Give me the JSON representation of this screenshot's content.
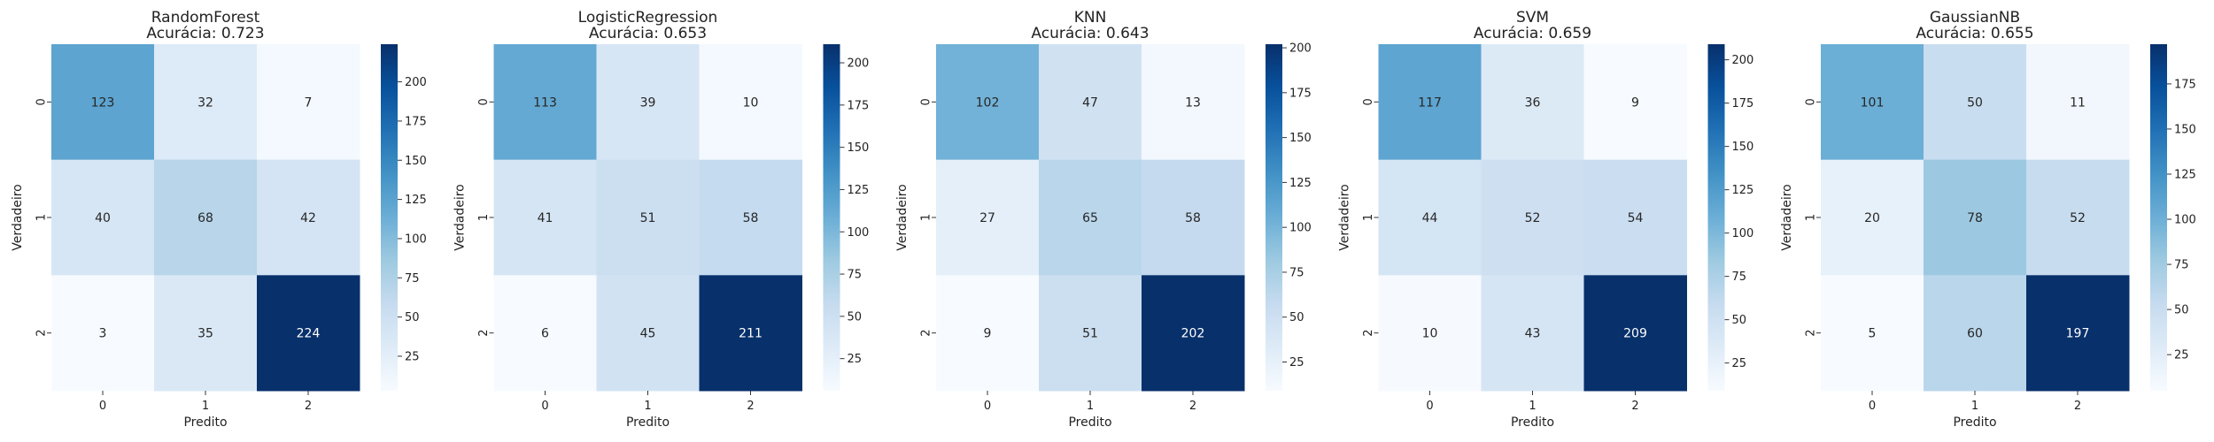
{
  "figure": {
    "xlabel": "Predito",
    "ylabel": "Verdadeiro"
  },
  "colormap": {
    "name": "Blues",
    "stops": [
      "#f7fbff",
      "#deebf7",
      "#c6dbef",
      "#9ecae1",
      "#6baed6",
      "#4292c6",
      "#2171b5",
      "#08519c",
      "#08306b"
    ]
  },
  "chart_data": [
    {
      "type": "heatmap",
      "model": "RandomForest",
      "accuracy_label": "Acurácia: 0.723",
      "x_ticks": [
        "0",
        "1",
        "2"
      ],
      "y_ticks": [
        "0",
        "1",
        "2"
      ],
      "values": [
        [
          123,
          32,
          7
        ],
        [
          40,
          68,
          42
        ],
        [
          3,
          35,
          224
        ]
      ],
      "vmin": 3,
      "vmax": 224,
      "colorbar_ticks": [
        25,
        50,
        75,
        100,
        125,
        150,
        175,
        200
      ]
    },
    {
      "type": "heatmap",
      "model": "LogisticRegression",
      "accuracy_label": "Acurácia: 0.653",
      "x_ticks": [
        "0",
        "1",
        "2"
      ],
      "y_ticks": [
        "0",
        "1",
        "2"
      ],
      "values": [
        [
          113,
          39,
          10
        ],
        [
          41,
          51,
          58
        ],
        [
          6,
          45,
          211
        ]
      ],
      "vmin": 6,
      "vmax": 211,
      "colorbar_ticks": [
        25,
        50,
        75,
        100,
        125,
        150,
        175,
        200
      ]
    },
    {
      "type": "heatmap",
      "model": "KNN",
      "accuracy_label": "Acurácia: 0.643",
      "x_ticks": [
        "0",
        "1",
        "2"
      ],
      "y_ticks": [
        "0",
        "1",
        "2"
      ],
      "values": [
        [
          102,
          47,
          13
        ],
        [
          27,
          65,
          58
        ],
        [
          9,
          51,
          202
        ]
      ],
      "vmin": 9,
      "vmax": 202,
      "colorbar_ticks": [
        25,
        50,
        75,
        100,
        125,
        150,
        175,
        200
      ]
    },
    {
      "type": "heatmap",
      "model": "SVM",
      "accuracy_label": "Acurácia: 0.659",
      "x_ticks": [
        "0",
        "1",
        "2"
      ],
      "y_ticks": [
        "0",
        "1",
        "2"
      ],
      "values": [
        [
          117,
          36,
          9
        ],
        [
          44,
          52,
          54
        ],
        [
          10,
          43,
          209
        ]
      ],
      "vmin": 9,
      "vmax": 209,
      "colorbar_ticks": [
        25,
        50,
        75,
        100,
        125,
        150,
        175,
        200
      ]
    },
    {
      "type": "heatmap",
      "model": "GaussianNB",
      "accuracy_label": "Acurácia: 0.655",
      "x_ticks": [
        "0",
        "1",
        "2"
      ],
      "y_ticks": [
        "0",
        "1",
        "2"
      ],
      "values": [
        [
          101,
          50,
          11
        ],
        [
          20,
          78,
          52
        ],
        [
          5,
          60,
          197
        ]
      ],
      "vmin": 5,
      "vmax": 197,
      "colorbar_ticks": [
        25,
        50,
        75,
        100,
        125,
        150,
        175
      ]
    }
  ]
}
